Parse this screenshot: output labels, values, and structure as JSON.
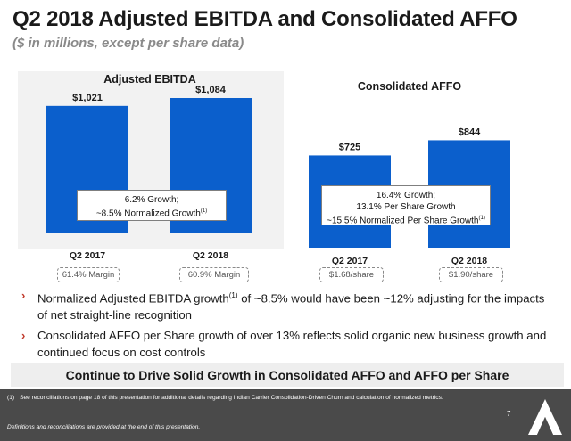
{
  "header": {
    "title": "Q2 2018 Adjusted EBITDA and Consolidated AFFO",
    "subtitle": "($ in millions, except per share data)"
  },
  "chart_data": [
    {
      "type": "bar",
      "title": "Adjusted EBITDA",
      "categories": [
        "Q2 2017",
        "Q2 2018"
      ],
      "values": [
        1021,
        1084
      ],
      "data_labels": [
        "$1,021",
        "$1,084"
      ],
      "unit": "$ millions",
      "ylim": [
        0,
        1084
      ],
      "color": "#0b5fcc",
      "annotation": {
        "line1": "6.2% Growth;",
        "line2": "~8.5% Normalized Growth",
        "footnote_ref": "(1)"
      },
      "margins": [
        "61.4% Margin",
        "60.9% Margin"
      ]
    },
    {
      "type": "bar",
      "title": "Consolidated AFFO",
      "categories": [
        "Q2 2017",
        "Q2 2018"
      ],
      "values": [
        725,
        844
      ],
      "data_labels": [
        "$725",
        "$844"
      ],
      "unit": "$ millions",
      "ylim": [
        0,
        1176
      ],
      "color": "#0b5fcc",
      "annotation": {
        "line1": "16.4% Growth;",
        "line2": "13.1% Per Share Growth",
        "line3": "~15.5% Normalized Per Share Growth",
        "footnote_ref": "(1)"
      },
      "per_share": [
        "$1.68/share",
        "$1.90/share"
      ]
    }
  ],
  "bullets": [
    {
      "part1": "Normalized Adjusted EBITDA growth",
      "sup": "(1)",
      "part2": " of ~8.5% would have been ~12% adjusting for the impacts of net straight-line recognition"
    },
    {
      "text": "Consolidated AFFO per Share growth of over 13% reflects solid organic new business growth and continued focus on cost controls"
    }
  ],
  "banner": "Continue to Drive Solid Growth in Consolidated AFFO and AFFO per Share",
  "footer": {
    "footnote_num": "(1)",
    "footnote_text": "See reconciliations on page 18 of this presentation for additional details regarding Indian Carrier Consolidation-Driven Churn and calculation of normalized metrics.",
    "definitions": "Definitions and reconciliations are provided at the end of this presentation.",
    "page": "7"
  },
  "colors": {
    "bar": "#0b5fcc",
    "footer_bg": "#4a4a4a",
    "bullet_marker": "#c0392b"
  }
}
